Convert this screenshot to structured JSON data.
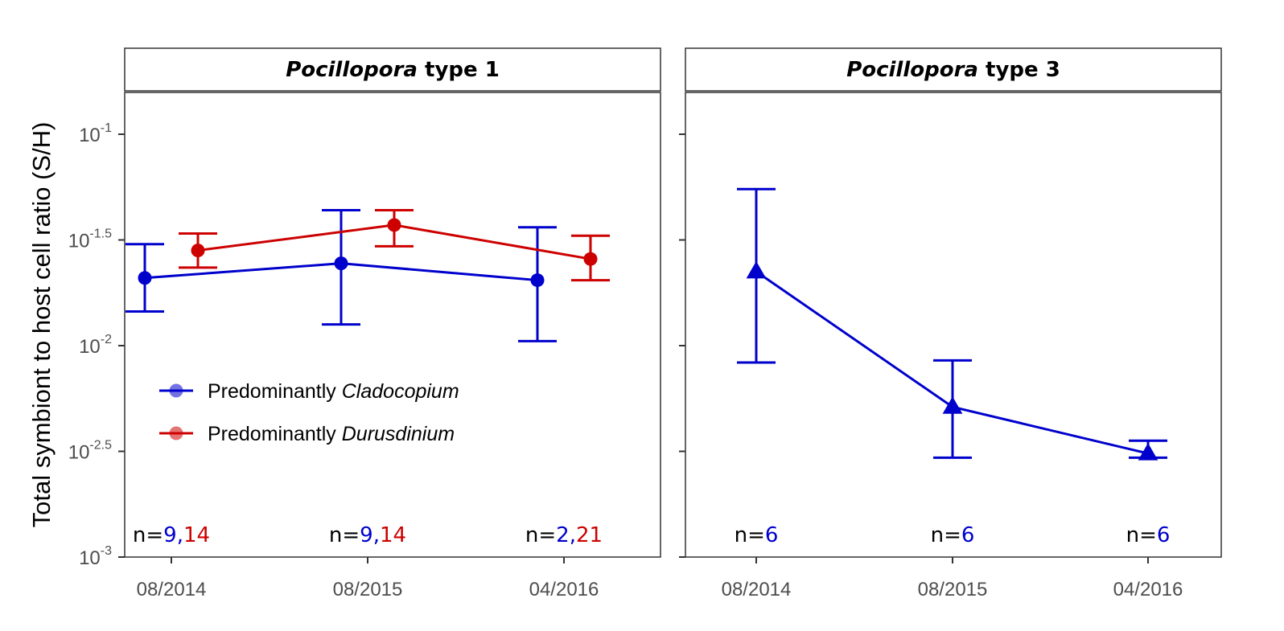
{
  "chart_data": {
    "type": "line",
    "ylabel": "Total symbiont to host cell ratio (S/H)",
    "xlabel": "",
    "yscale": "log10",
    "ylim": [
      0.001,
      0.1778
    ],
    "ytick_labels": [
      {
        "exp": -3,
        "base": "10",
        "sup": "-3"
      },
      {
        "exp": -2.5,
        "base": "10",
        "sup": "-2.5"
      },
      {
        "exp": -2,
        "base": "10",
        "sup": "-2"
      },
      {
        "exp": -1.5,
        "base": "10",
        "sup": "-1.5"
      },
      {
        "exp": -1,
        "base": "10",
        "sup": "-1"
      }
    ],
    "categories": [
      "08/2014",
      "08/2015",
      "04/2016"
    ],
    "colors": {
      "cladocopium": "#0000CD",
      "durusdinium": "#CD0000"
    },
    "legend": {
      "position": "inside-bottom-left",
      "entries": [
        {
          "prefix": "Predominantly ",
          "italic": "Cladocopium",
          "series": "cladocopium"
        },
        {
          "prefix": "Predominantly ",
          "italic": "Durusdinium",
          "series": "durusdinium"
        }
      ]
    },
    "panels": [
      {
        "title_italic": "Pocillopora",
        "title_rest": " type 1",
        "marker": "circle",
        "series": [
          {
            "key": "cladocopium",
            "values": [
              0.0209,
              0.0245,
              0.0204
            ],
            "lower": [
              0.0145,
              0.0126,
              0.0105
            ],
            "upper": [
              0.0302,
              0.0437,
              0.0363
            ]
          },
          {
            "key": "durusdinium",
            "values": [
              0.0282,
              0.0372,
              0.0257
            ],
            "lower": [
              0.0234,
              0.0295,
              0.0204
            ],
            "upper": [
              0.0339,
              0.0437,
              0.0331
            ]
          }
        ],
        "n_labels": [
          {
            "prefix": "n=",
            "parts": [
              {
                "text": "9",
                "series": "cladocopium"
              },
              {
                "text": ",",
                "series": "cladocopium"
              },
              {
                "text": "14",
                "series": "durusdinium"
              }
            ]
          },
          {
            "prefix": "n=",
            "parts": [
              {
                "text": "9",
                "series": "cladocopium"
              },
              {
                "text": ",",
                "series": "cladocopium"
              },
              {
                "text": "14",
                "series": "durusdinium"
              }
            ]
          },
          {
            "prefix": "n=",
            "parts": [
              {
                "text": "2",
                "series": "cladocopium"
              },
              {
                "text": ",",
                "series": "cladocopium"
              },
              {
                "text": "21",
                "series": "durusdinium"
              }
            ]
          }
        ]
      },
      {
        "title_italic": "Pocillopora",
        "title_rest": " type 3",
        "marker": "triangle",
        "series": [
          {
            "key": "cladocopium",
            "values": [
              0.0224,
              0.00513,
              0.00309
            ],
            "lower": [
              0.00832,
              0.00295,
              0.00295
            ],
            "upper": [
              0.055,
              0.00851,
              0.00355
            ]
          }
        ],
        "n_labels": [
          {
            "prefix": "n=",
            "parts": [
              {
                "text": "6",
                "series": "cladocopium"
              }
            ]
          },
          {
            "prefix": "n=",
            "parts": [
              {
                "text": "6",
                "series": "cladocopium"
              }
            ]
          },
          {
            "prefix": "n=",
            "parts": [
              {
                "text": "6",
                "series": "cladocopium"
              }
            ]
          }
        ]
      }
    ]
  }
}
